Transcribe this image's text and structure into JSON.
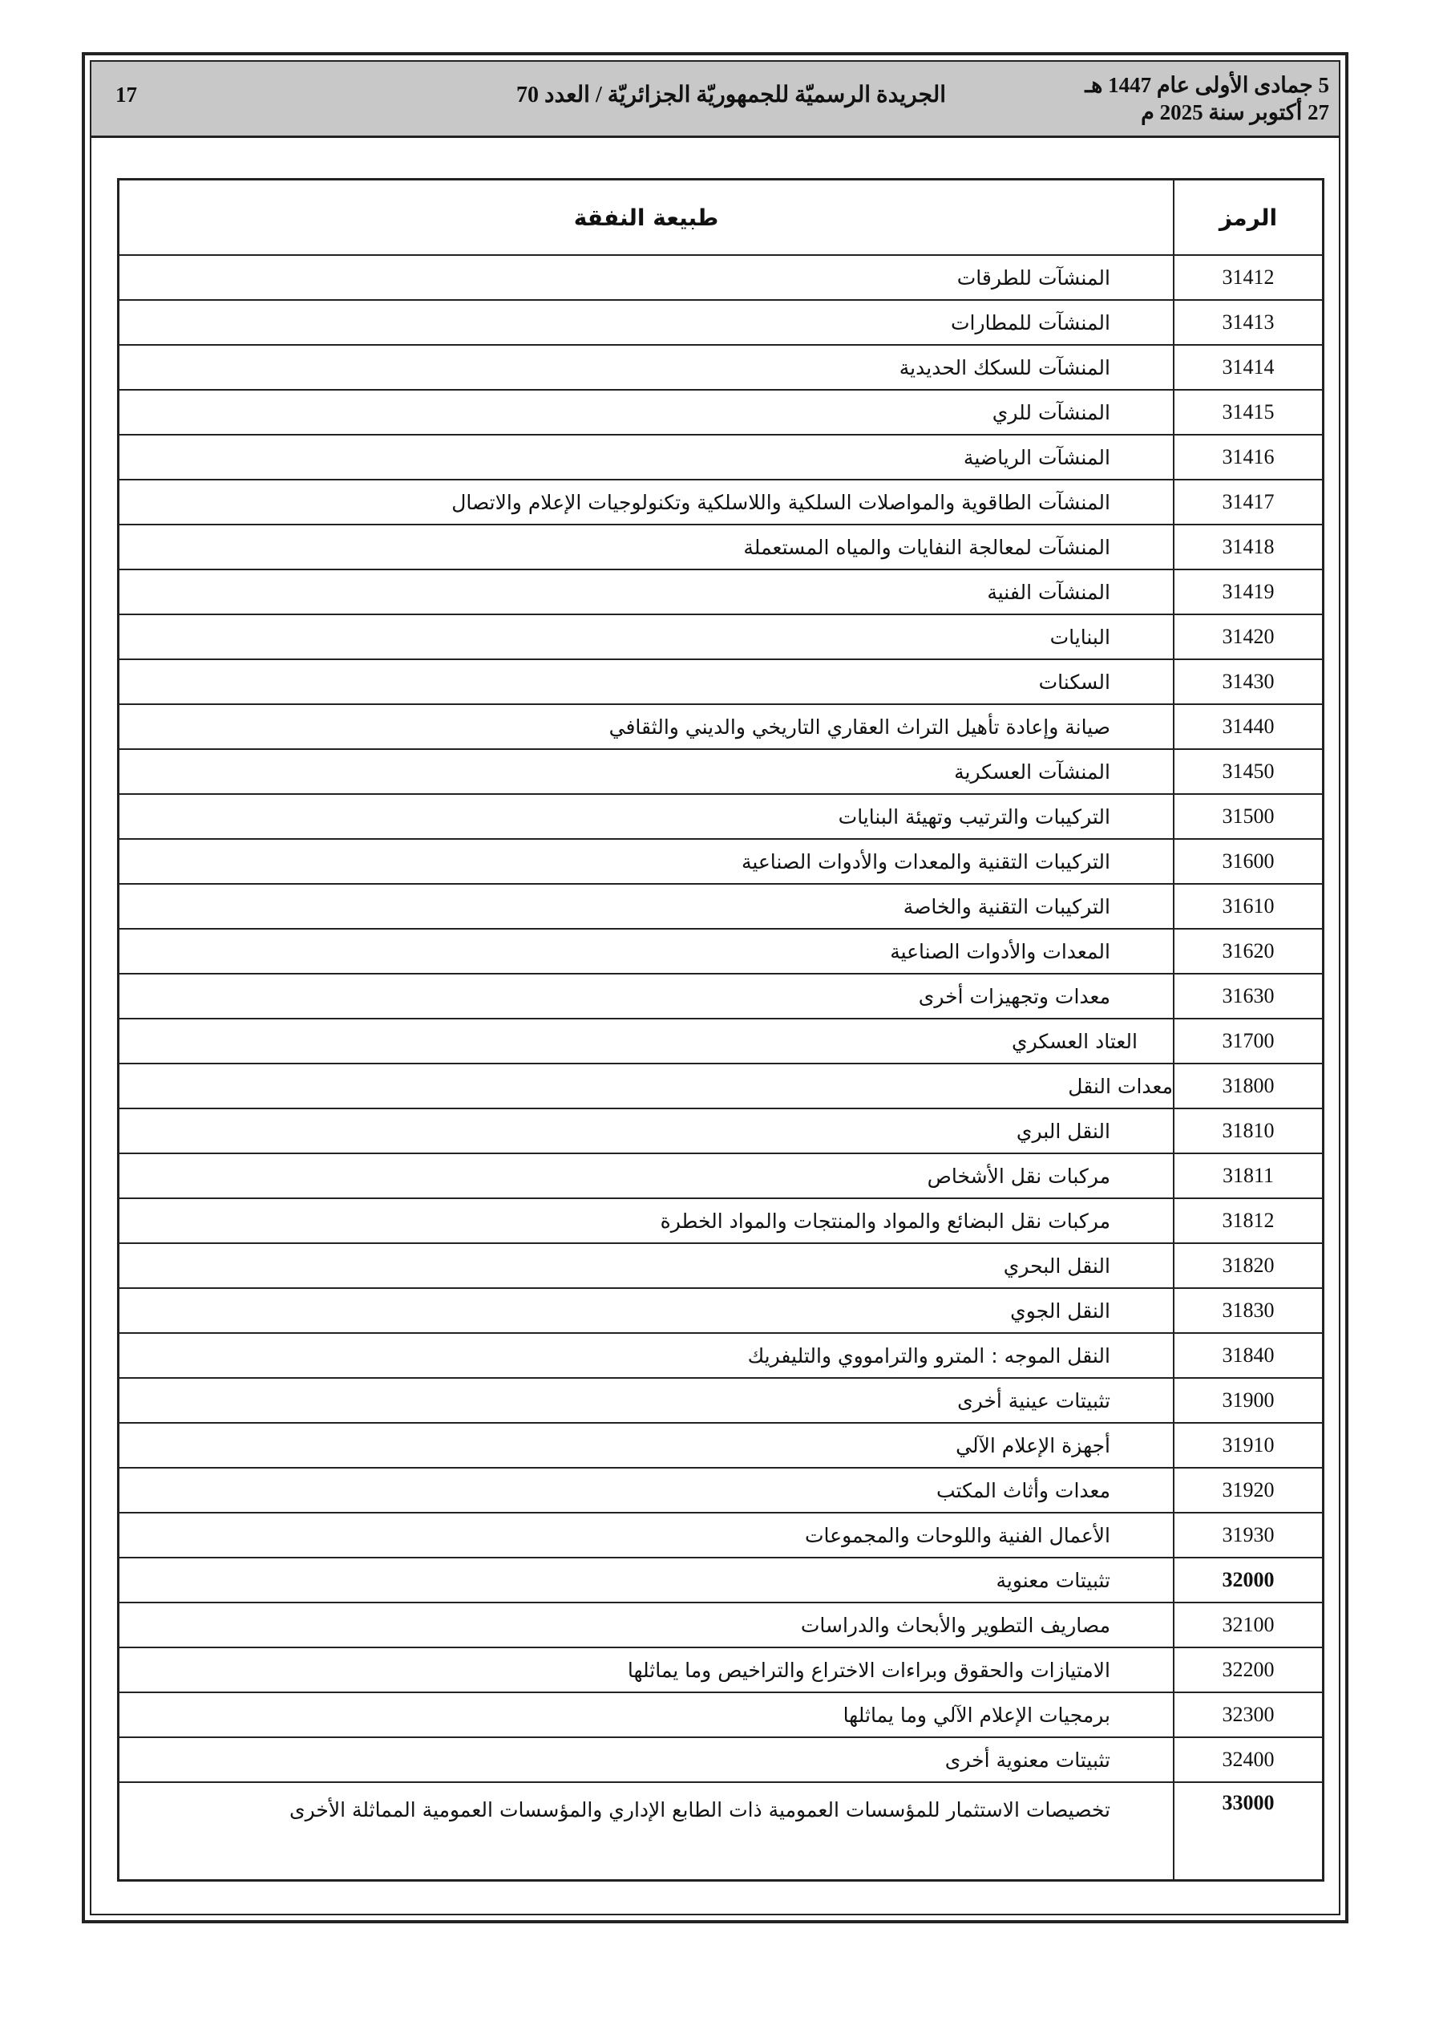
{
  "header": {
    "date_hijri": "5 جمادى الأولى عام 1447 هـ",
    "date_gregorian": "27 أكتوبر سنة 2025 م",
    "title": "الجريدة الرسميّة للجمهوريّة الجزائريّة / العدد 70",
    "page_number": "17"
  },
  "table": {
    "columns": [
      "الرمز",
      "طبيعة النفقة"
    ],
    "rows": [
      {
        "code": "31412",
        "desc": "المنشآت للطرقات"
      },
      {
        "code": "31413",
        "desc": "المنشآت للمطارات"
      },
      {
        "code": "31414",
        "desc": "المنشآت للسكك الحديدية"
      },
      {
        "code": "31415",
        "desc": "المنشآت للري"
      },
      {
        "code": "31416",
        "desc": "المنشآت الرياضية"
      },
      {
        "code": "31417",
        "desc": "المنشآت الطاقوية والمواصلات السلكية واللاسلكية وتكنولوجيات الإعلام والاتصال"
      },
      {
        "code": "31418",
        "desc": "المنشآت لمعالجة النفايات والمياه المستعملة"
      },
      {
        "code": "31419",
        "desc": "المنشآت الفنية"
      },
      {
        "code": "31420",
        "desc": "البنايات"
      },
      {
        "code": "31430",
        "desc": "السكنات"
      },
      {
        "code": "31440",
        "desc": "صيانة وإعادة تأهيل التراث العقاري التاريخي والديني والثقافي"
      },
      {
        "code": "31450",
        "desc": "المنشآت العسكرية"
      },
      {
        "code": "31500",
        "desc": "التركيبات والترتيب وتهيئة البنايات"
      },
      {
        "code": "31600",
        "desc": "التركيبات التقنية والمعدات والأدوات الصناعية"
      },
      {
        "code": "31610",
        "desc": "التركيبات التقنية والخاصة"
      },
      {
        "code": "31620",
        "desc": "المعدات والأدوات الصناعية"
      },
      {
        "code": "31630",
        "desc": "معدات وتجهيزات أخرى"
      },
      {
        "code": "31700",
        "desc": "العتاد العسكري"
      },
      {
        "code": "31800",
        "desc": "معدات النقل"
      },
      {
        "code": "31810",
        "desc": "النقل البري"
      },
      {
        "code": "31811",
        "desc": "مركبات نقل الأشخاص"
      },
      {
        "code": "31812",
        "desc": "مركبات نقل البضائع والمواد والمنتجات والمواد الخطرة"
      },
      {
        "code": "31820",
        "desc": "النقل البحري"
      },
      {
        "code": "31830",
        "desc": "النقل الجوي"
      },
      {
        "code": "31840",
        "desc": "النقل الموجه : المترو والترامووي والتليفريك"
      },
      {
        "code": "31900",
        "desc": "تثبيتات عينية أخرى"
      },
      {
        "code": "31910",
        "desc": "أجهزة الإعلام الآلي"
      },
      {
        "code": "31920",
        "desc": "معدات وأثاث المكتب"
      },
      {
        "code": "31930",
        "desc": "الأعمال الفنية واللوحات والمجموعات"
      },
      {
        "code": "32000",
        "desc": "تثبيتات معنوية",
        "bold": true
      },
      {
        "code": "32100",
        "desc": "مصاريف التطوير والأبحاث والدراسات"
      },
      {
        "code": "32200",
        "desc": "الامتيازات والحقوق وبراءات الاختراع والتراخيص وما يماثلها"
      },
      {
        "code": "32300",
        "desc": "برمجيات الإعلام الآلي وما يماثلها"
      },
      {
        "code": "32400",
        "desc": "تثبيتات معنوية أخرى"
      },
      {
        "code": "33000",
        "desc": "تخصيصات الاستثمار للمؤسسات العمومية ذات الطابع الإداري والمؤسسات العمومية المماثلة الأخرى",
        "bold": true
      }
    ]
  }
}
